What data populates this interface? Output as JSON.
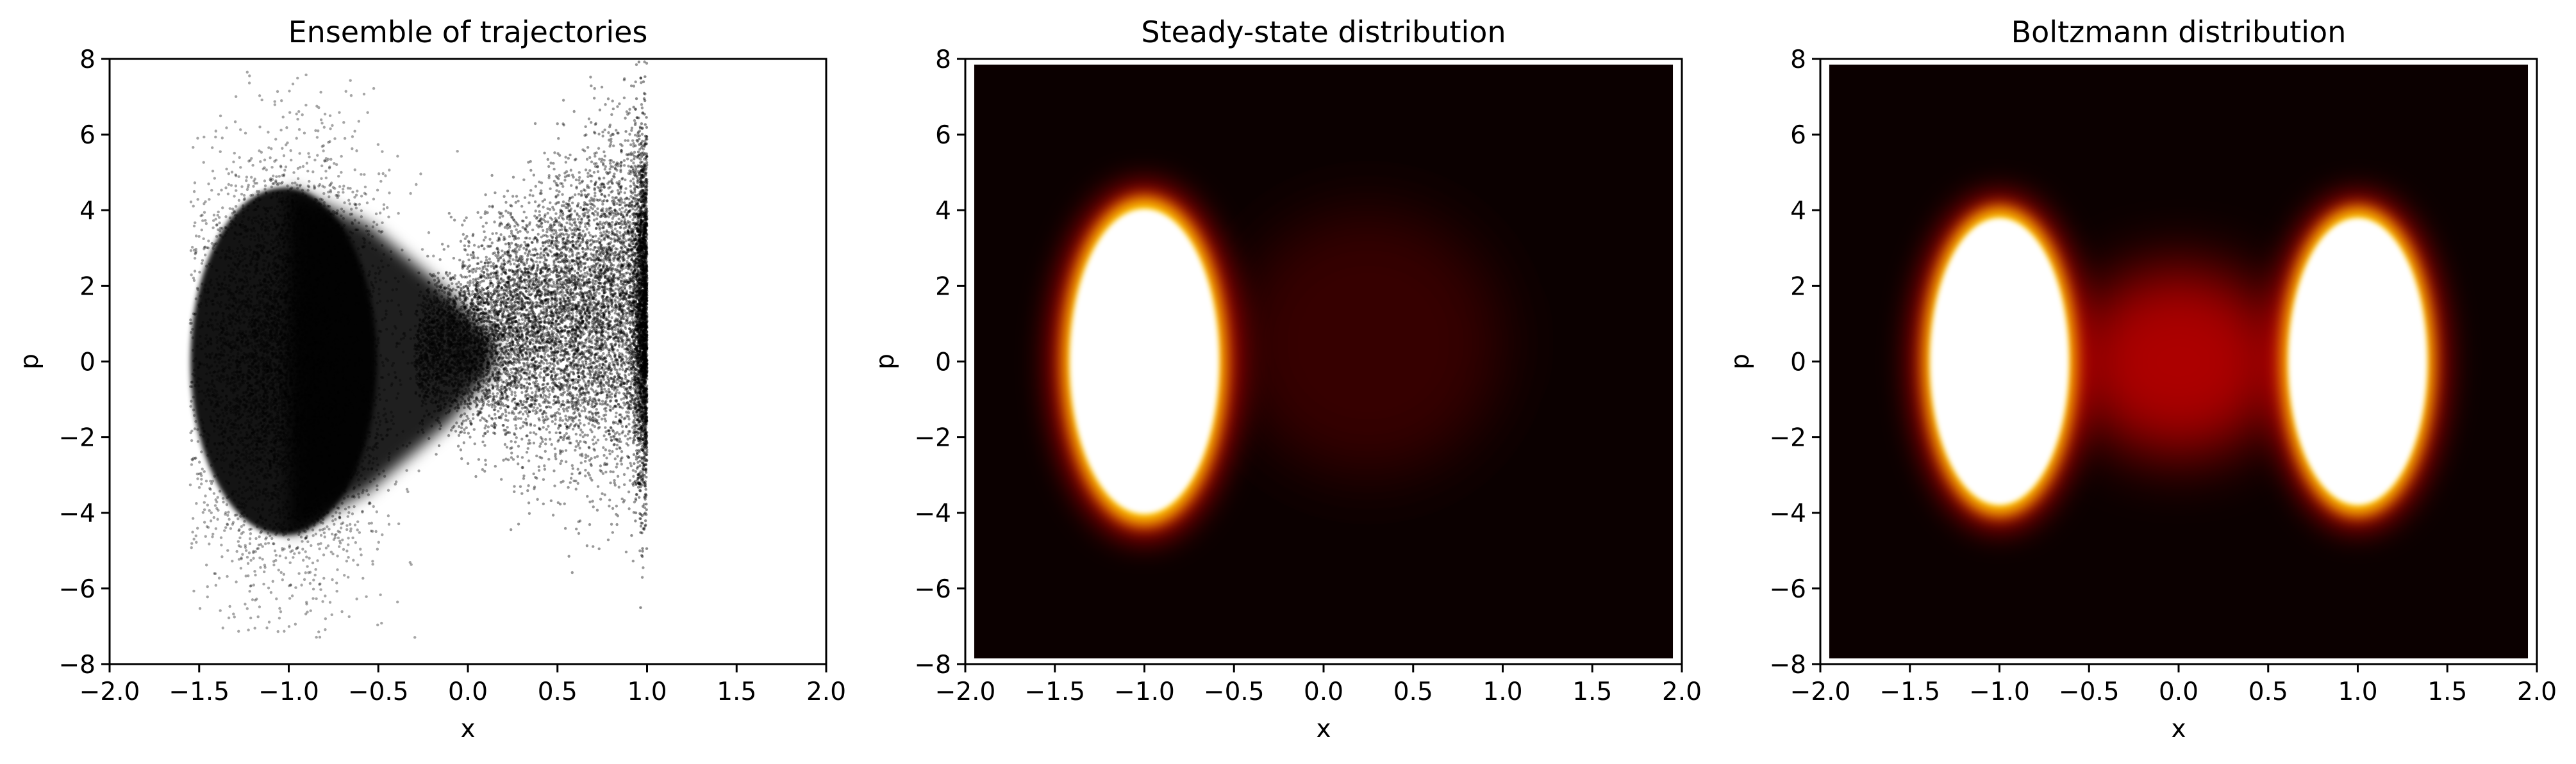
{
  "chart_data": [
    {
      "type": "scatter",
      "title": "Ensemble of trajectories",
      "xlabel": "x",
      "ylabel": "p",
      "xlim": [
        -2.0,
        2.0
      ],
      "ylim": [
        -8,
        8
      ],
      "xticks": [
        "−2.0",
        "−1.5",
        "−1.0",
        "−0.5",
        "0.0",
        "0.5",
        "1.0",
        "1.5",
        "2.0"
      ],
      "yticks": [
        "−8",
        "−6",
        "−4",
        "−2",
        "0",
        "2",
        "4",
        "6",
        "8"
      ],
      "grid": false,
      "marker_color": "#000000",
      "point_cloud": {
        "dense_core": {
          "center": [
            -1.0,
            0.0
          ],
          "x_halfwidth": 0.45,
          "p_halfwidth": 4.5
        },
        "sparse_halo": {
          "x_range": [
            -1.55,
            1.0
          ],
          "p_range": [
            -7.3,
            7.7
          ]
        },
        "right_fan": {
          "x_range": [
            -0.3,
            1.0
          ],
          "p_range_at_x1": [
            -2.8,
            6.9
          ]
        },
        "hard_cutoff_x": 1.0
      }
    },
    {
      "type": "heatmap",
      "title": "Steady-state distribution",
      "xlabel": "x",
      "ylabel": "p",
      "xlim": [
        -2.0,
        2.0
      ],
      "ylim": [
        -8,
        8
      ],
      "xticks": [
        "−2.0",
        "−1.5",
        "−1.0",
        "−0.5",
        "0.0",
        "0.5",
        "1.0",
        "1.5",
        "2.0"
      ],
      "yticks": [
        "−8",
        "−6",
        "−4",
        "−2",
        "0",
        "2",
        "4",
        "6",
        "8"
      ],
      "grid": false,
      "colormap": "hot",
      "extent": {
        "x": [
          -1.95,
          1.95
        ],
        "p": [
          -7.85,
          7.85
        ]
      },
      "peaks": [
        {
          "x": -1.0,
          "p": 0.0,
          "x_halfwidth": 0.43,
          "p_halfwidth": 4.2,
          "level": "saturated"
        }
      ],
      "tail": {
        "x_range": [
          -0.5,
          1.0
        ],
        "p_range": [
          -3.0,
          4.0
        ],
        "level": "faint"
      }
    },
    {
      "type": "heatmap",
      "title": "Boltzmann distribution",
      "xlabel": "x",
      "ylabel": "p",
      "xlim": [
        -2.0,
        2.0
      ],
      "ylim": [
        -8,
        8
      ],
      "xticks": [
        "−2.0",
        "−1.5",
        "−1.0",
        "−0.5",
        "0.0",
        "0.5",
        "1.0",
        "1.5",
        "2.0"
      ],
      "yticks": [
        "−8",
        "−6",
        "−4",
        "−2",
        "0",
        "2",
        "4",
        "6",
        "8"
      ],
      "grid": false,
      "colormap": "hot",
      "extent": {
        "x": [
          -1.95,
          1.95
        ],
        "p": [
          -7.85,
          7.85
        ]
      },
      "peaks": [
        {
          "x": -1.0,
          "p": 0.0,
          "x_halfwidth": 0.4,
          "p_halfwidth": 3.95,
          "level": "saturated"
        },
        {
          "x": 1.0,
          "p": 0.0,
          "x_halfwidth": 0.4,
          "p_halfwidth": 3.95,
          "level": "saturated"
        }
      ],
      "bridge": {
        "x_range": [
          -0.6,
          0.6
        ],
        "p_range": [
          -2.5,
          2.5
        ],
        "level": "dim red"
      }
    }
  ]
}
